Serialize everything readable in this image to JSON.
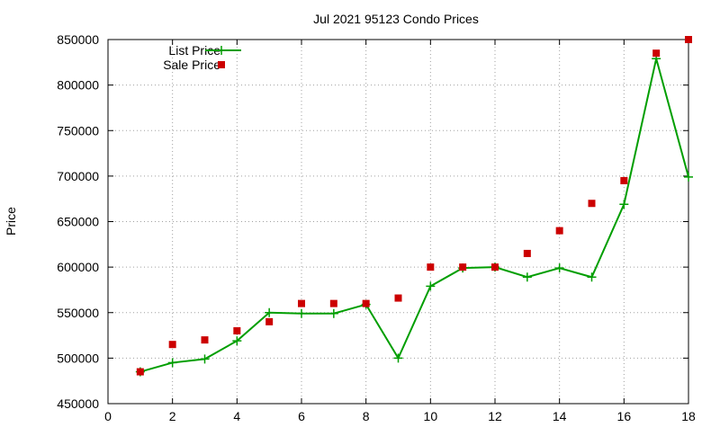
{
  "chart_data": {
    "type": "line",
    "title": "Jul 2021 95123 Condo Prices",
    "xlabel": "",
    "ylabel": "Price",
    "xlim": [
      0,
      18
    ],
    "ylim": [
      450000,
      850000
    ],
    "xticks": [
      0,
      2,
      4,
      6,
      8,
      10,
      12,
      14,
      16,
      18
    ],
    "yticks": [
      450000,
      500000,
      550000,
      600000,
      650000,
      700000,
      750000,
      800000,
      850000
    ],
    "grid": true,
    "legend_position": "top-left",
    "series": [
      {
        "name": "List Price",
        "style": "line-with-plus-markers",
        "color": "#009e00",
        "x": [
          1,
          2,
          3,
          4,
          5,
          6,
          7,
          8,
          9,
          10,
          11,
          12,
          13,
          14,
          15,
          16,
          17,
          18
        ],
        "y": [
          485000,
          495000,
          499000,
          519000,
          550000,
          549000,
          549000,
          559000,
          500000,
          579000,
          599000,
          600000,
          589000,
          599000,
          589000,
          669000,
          829000,
          699000
        ]
      },
      {
        "name": "Sale Price",
        "style": "square-markers",
        "color": "#cc0000",
        "x": [
          1,
          2,
          3,
          4,
          5,
          6,
          7,
          8,
          9,
          10,
          11,
          12,
          13,
          14,
          15,
          16,
          17,
          18
        ],
        "y": [
          485000,
          515000,
          520000,
          530000,
          540000,
          560000,
          560000,
          560000,
          566000,
          600000,
          600000,
          600000,
          615000,
          640000,
          670000,
          695000,
          835000,
          850000
        ]
      }
    ]
  }
}
